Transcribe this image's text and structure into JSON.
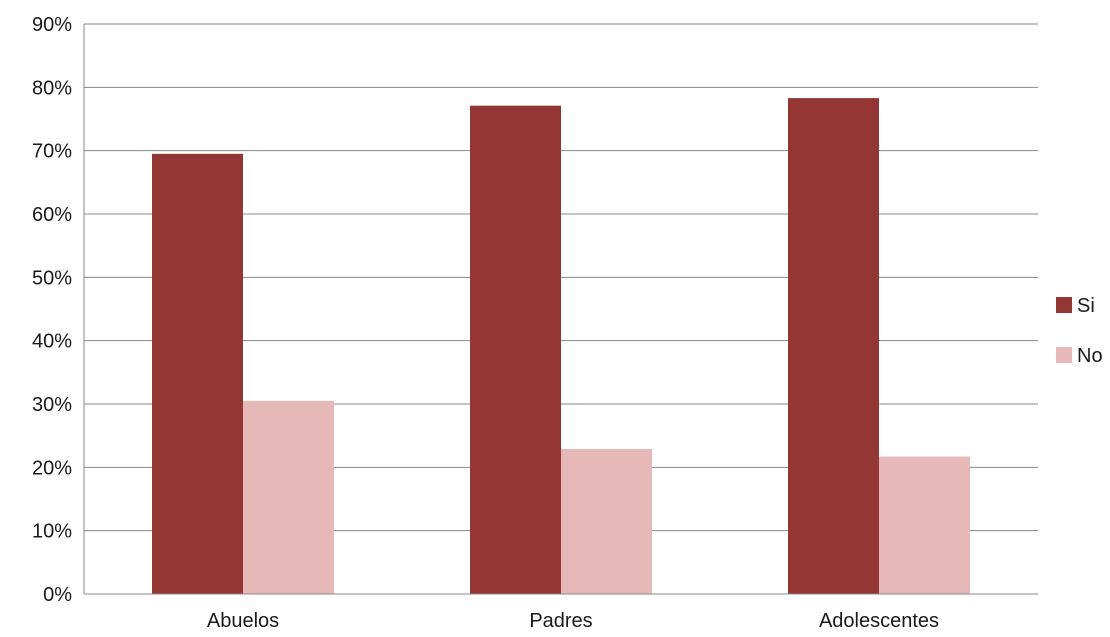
{
  "chart_data": {
    "type": "bar",
    "title": "",
    "xlabel": "",
    "ylabel": "",
    "categories": [
      "Abuelos",
      "Padres",
      "Adolescentes"
    ],
    "series": [
      {
        "name": "Si",
        "values": [
          69.5,
          77.1,
          78.3
        ],
        "color": "#943634"
      },
      {
        "name": "No",
        "values": [
          30.5,
          22.9,
          21.7
        ],
        "color": "#e6b9b8"
      }
    ],
    "ylim": [
      0,
      90
    ],
    "yticks": [
      0,
      10,
      20,
      30,
      40,
      50,
      60,
      70,
      80,
      90
    ],
    "ytick_labels": [
      "0%",
      "10%",
      "20%",
      "30%",
      "40%",
      "50%",
      "60%",
      "70%",
      "80%",
      "90%"
    ],
    "grid": true,
    "gridline_color": "#888888",
    "legend_position": "right"
  }
}
